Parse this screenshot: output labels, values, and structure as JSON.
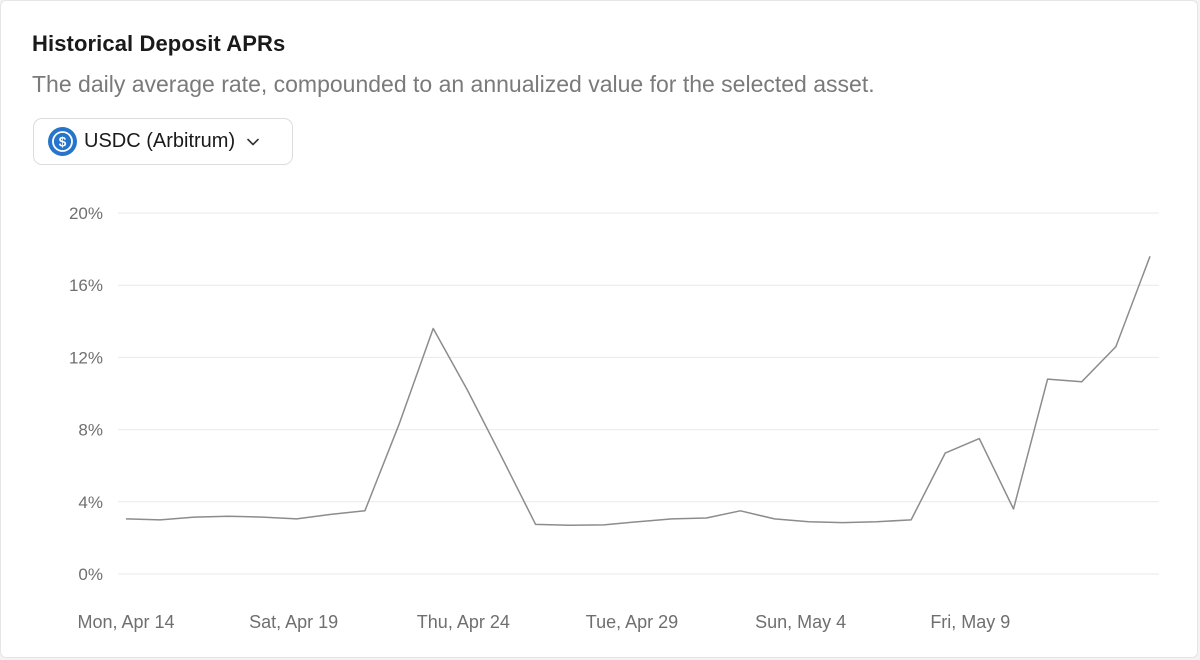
{
  "header": {
    "title": "Historical Deposit APRs",
    "subtitle": "The daily average rate, compounded to an annualized value for the selected asset."
  },
  "asset_selector": {
    "selected": "USDC (Arbitrum)",
    "icon": "usdc-coin-icon",
    "chevron": "chevron-down-icon"
  },
  "colors": {
    "line": "#8c8c8c",
    "grid": "#e9e9e9",
    "usdc_blue": "#2775ca"
  },
  "chart_data": {
    "type": "line",
    "title": "",
    "xlabel": "",
    "ylabel": "",
    "ylim": [
      0,
      20
    ],
    "y_ticks": [
      "0%",
      "4%",
      "8%",
      "12%",
      "16%",
      "20%"
    ],
    "y_tick_values": [
      0,
      4,
      8,
      12,
      16,
      20
    ],
    "x_tick_labels": [
      "Mon, Apr 14",
      "Sat, Apr 19",
      "Thu, Apr 24",
      "Tue, Apr 29",
      "Sun, May 4",
      "Fri, May 9"
    ],
    "x_tick_indices": [
      0,
      5,
      10,
      15,
      20,
      25
    ],
    "grid": true,
    "series": [
      {
        "values": [
          3.05,
          3.0,
          3.15,
          3.2,
          3.15,
          3.05,
          3.3,
          3.5,
          8.3,
          13.6,
          10.2,
          6.5,
          2.75,
          2.7,
          2.72,
          2.9,
          3.05,
          3.1,
          3.5,
          3.05,
          2.9,
          2.85,
          2.9,
          3.0,
          6.7,
          7.5,
          3.6,
          10.8,
          10.65,
          12.6,
          17.6
        ]
      }
    ]
  }
}
